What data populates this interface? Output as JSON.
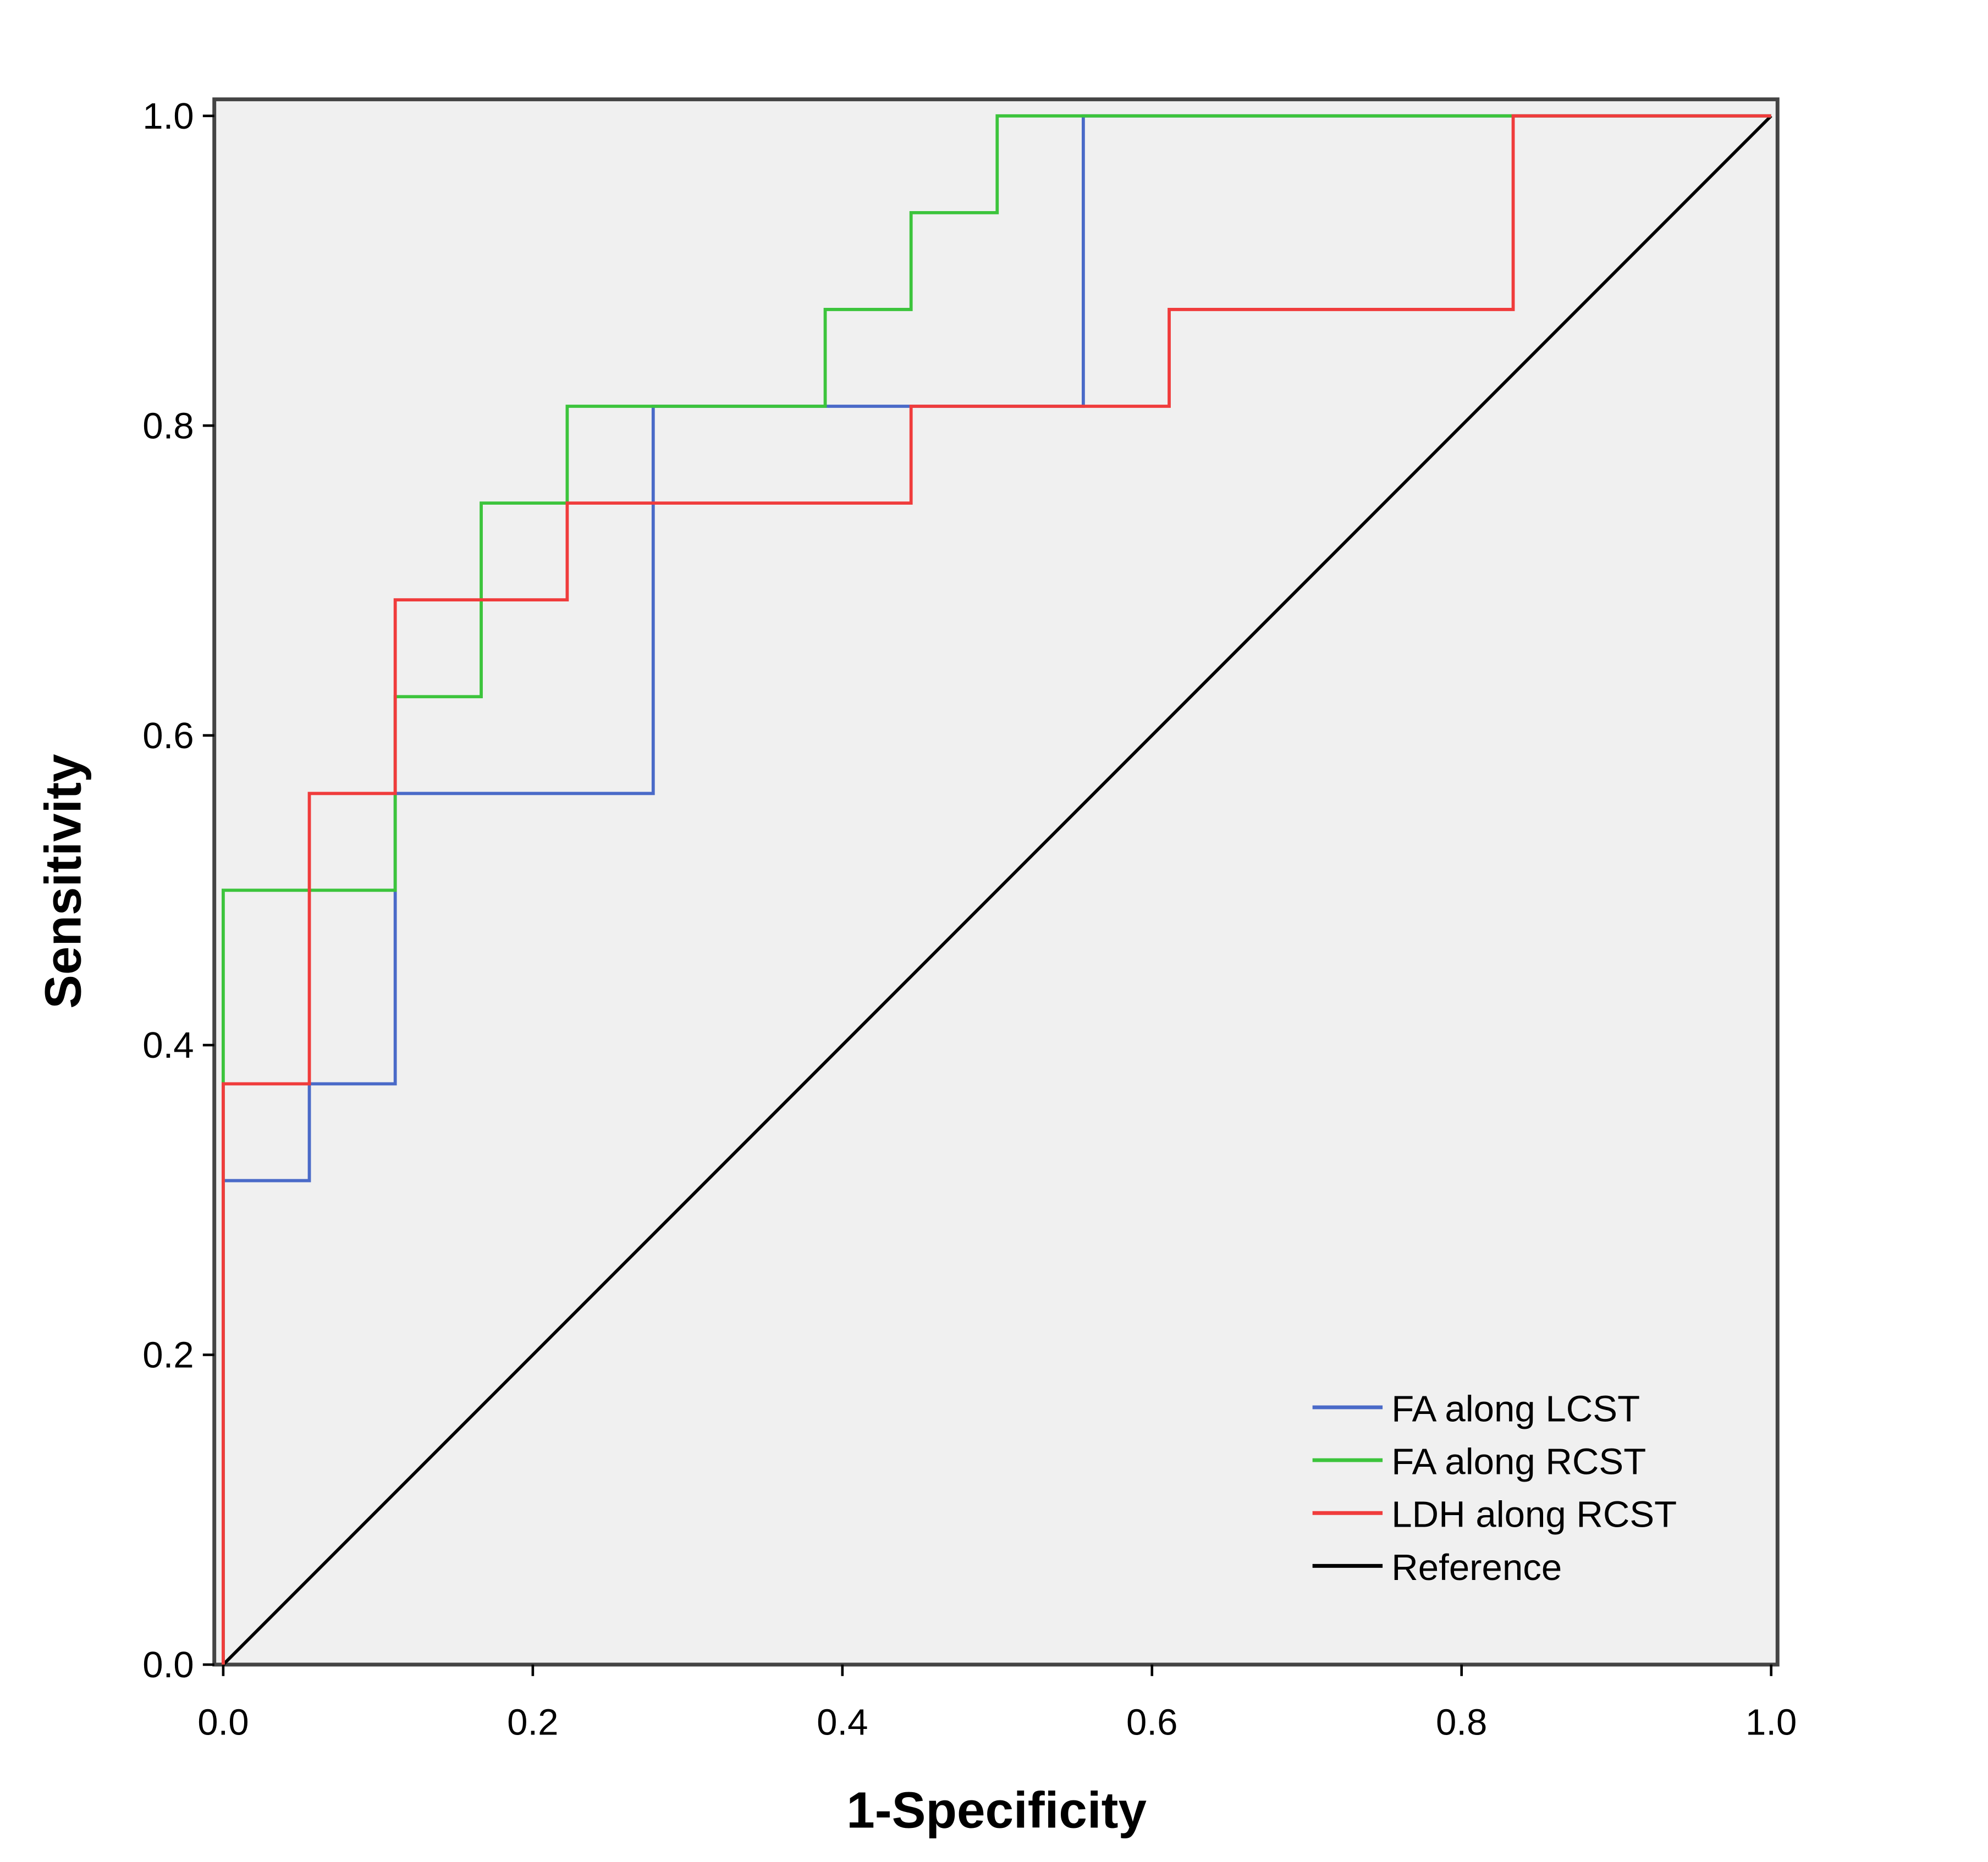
{
  "chart_data": {
    "type": "line",
    "title": "",
    "xlabel": "1-Specificity",
    "ylabel": "Sensitivity",
    "xlim": [
      0,
      1
    ],
    "ylim": [
      0,
      1
    ],
    "xticks": [
      "0.0",
      "0.2",
      "0.4",
      "0.6",
      "0.8",
      "1.0"
    ],
    "yticks": [
      "0.0",
      "0.2",
      "0.4",
      "0.6",
      "0.8",
      "1.0"
    ],
    "grid": false,
    "legend_position": "bottom-right",
    "series": [
      {
        "name": "FA along LCST",
        "color": "#4a6ac8",
        "x": [
          0,
          0,
          0.0556,
          0.0556,
          0.1111,
          0.1111,
          0.2778,
          0.2778,
          0.5556,
          0.5556,
          1
        ],
        "y": [
          0,
          0.3125,
          0.3125,
          0.375,
          0.375,
          0.5625,
          0.5625,
          0.8125,
          0.8125,
          1,
          1
        ]
      },
      {
        "name": "FA along RCST",
        "color": "#3cc43c",
        "x": [
          0,
          0,
          0.1111,
          0.1111,
          0.1667,
          0.1667,
          0.2222,
          0.2222,
          0.3889,
          0.3889,
          0.4444,
          0.4444,
          0.5,
          0.5,
          1
        ],
        "y": [
          0,
          0.5,
          0.5,
          0.625,
          0.625,
          0.75,
          0.75,
          0.8125,
          0.8125,
          0.875,
          0.875,
          0.9375,
          0.9375,
          1,
          1
        ]
      },
      {
        "name": "LDH along RCST",
        "color": "#f03c3c",
        "x": [
          0,
          0,
          0.0556,
          0.0556,
          0.1111,
          0.1111,
          0.2222,
          0.2222,
          0.4444,
          0.4444,
          0.6111,
          0.6111,
          0.8333,
          0.8333,
          1
        ],
        "y": [
          0,
          0.375,
          0.375,
          0.5625,
          0.5625,
          0.6875,
          0.6875,
          0.75,
          0.75,
          0.8125,
          0.8125,
          0.875,
          0.875,
          1,
          1
        ]
      },
      {
        "name": "Reference",
        "color": "#000000",
        "x": [
          0,
          1
        ],
        "y": [
          0,
          1
        ]
      }
    ]
  }
}
